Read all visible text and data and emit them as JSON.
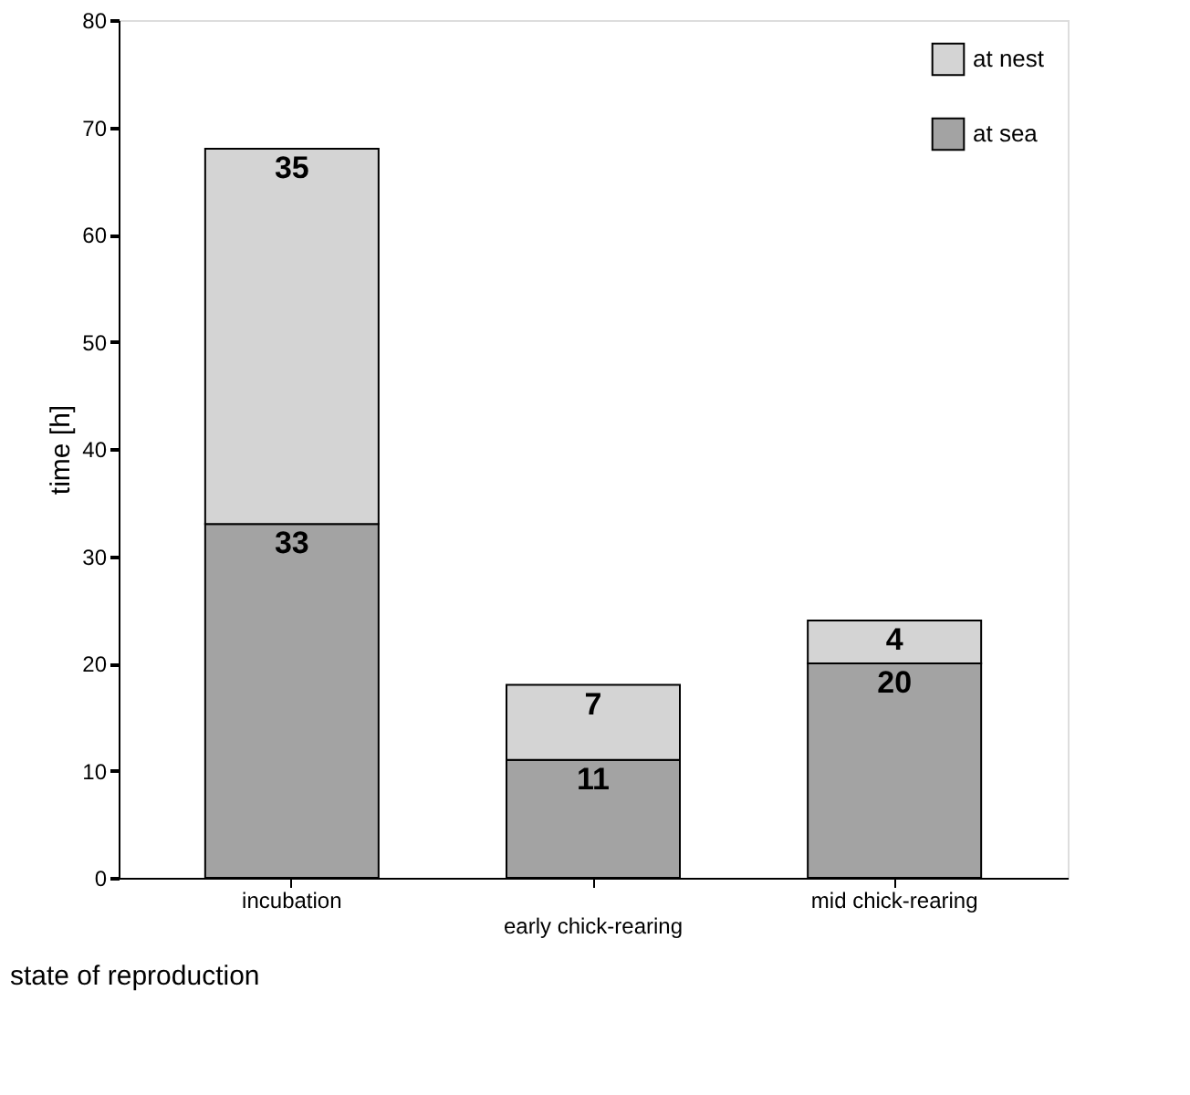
{
  "chart_data": {
    "type": "bar",
    "stacked": true,
    "xlabel": "state of reproduction",
    "ylabel": "time [h]",
    "categories": [
      "incubation",
      "early chick-rearing",
      "mid chick-rearing"
    ],
    "series": [
      {
        "name": "at sea",
        "color": "#a3a3a3",
        "values": [
          33,
          11,
          20
        ]
      },
      {
        "name": "at nest",
        "color": "#d4d4d4",
        "values": [
          35,
          7,
          4
        ]
      }
    ],
    "ylim": [
      0,
      80
    ],
    "yticks": [
      0,
      10,
      20,
      30,
      40,
      50,
      60,
      70,
      80
    ],
    "grid": false,
    "legend": "top right",
    "data_labels": true
  }
}
